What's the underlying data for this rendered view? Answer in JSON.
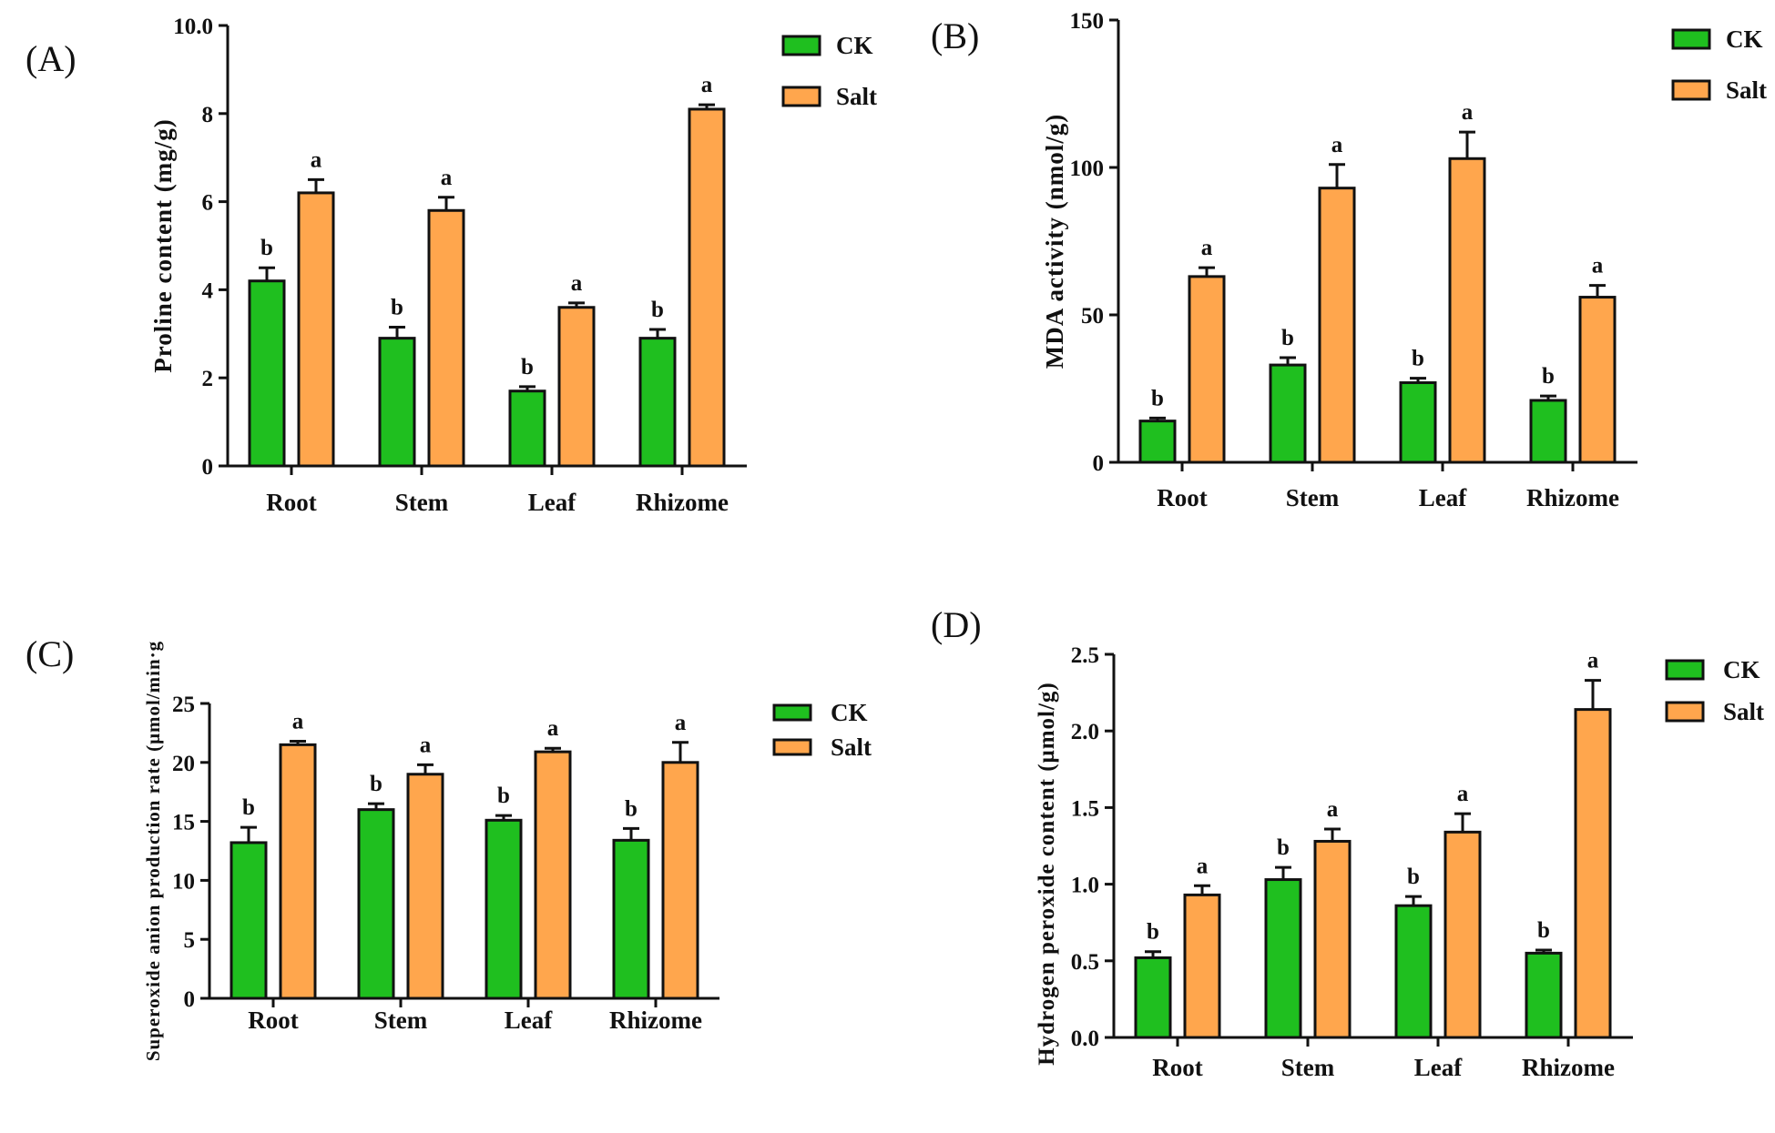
{
  "colors": {
    "ck": "#1fbf1f",
    "salt": "#ffa64d",
    "axis": "#111111"
  },
  "chart_data": [
    {
      "type": "bar",
      "panel": "(A)",
      "categories": [
        "Root",
        "Stem",
        "Leaf",
        "Rhizome"
      ],
      "ylabel": "Proline content (mg/g)",
      "ylim": [
        0,
        10
      ],
      "yticks": [
        0,
        2,
        4,
        6,
        8,
        10.0
      ],
      "ytick_labels": [
        "0",
        "2",
        "4",
        "6",
        "8",
        "10.0"
      ],
      "legend": {
        "position": "top-right",
        "entries": [
          "CK",
          "Salt"
        ]
      },
      "series": [
        {
          "name": "CK",
          "values": [
            4.2,
            2.9,
            1.7,
            2.9
          ],
          "errors": [
            0.3,
            0.25,
            0.1,
            0.2
          ],
          "sig": [
            "b",
            "b",
            "b",
            "b"
          ]
        },
        {
          "name": "Salt",
          "values": [
            6.2,
            5.8,
            3.6,
            8.1
          ],
          "errors": [
            0.3,
            0.3,
            0.1,
            0.1
          ],
          "sig": [
            "a",
            "a",
            "a",
            "a"
          ]
        }
      ]
    },
    {
      "type": "bar",
      "panel": "(B)",
      "categories": [
        "Root",
        "Stem",
        "Leaf",
        "Rhizome"
      ],
      "ylabel": "MDA activity (nmol/g)",
      "ylim": [
        0,
        150
      ],
      "yticks": [
        0,
        50,
        100,
        150
      ],
      "ytick_labels": [
        "0",
        "50",
        "100",
        "150"
      ],
      "legend": {
        "position": "top-right",
        "entries": [
          "CK",
          "Salt"
        ]
      },
      "series": [
        {
          "name": "CK",
          "values": [
            14,
            33,
            27,
            21
          ],
          "errors": [
            1,
            2.5,
            1.5,
            1.5
          ],
          "sig": [
            "b",
            "b",
            "b",
            "b"
          ]
        },
        {
          "name": "Salt",
          "values": [
            63,
            93,
            103,
            56
          ],
          "errors": [
            3,
            8,
            9,
            4
          ],
          "sig": [
            "a",
            "a",
            "a",
            "a"
          ]
        }
      ]
    },
    {
      "type": "bar",
      "panel": "(C)",
      "categories": [
        "Root",
        "Stem",
        "Leaf",
        "Rhizome"
      ],
      "ylabel": "Superoxide anion production rate (μmol/min·g",
      "ylim": [
        0,
        25
      ],
      "yticks": [
        0,
        5,
        10,
        15,
        20,
        25
      ],
      "ytick_labels": [
        "0",
        "5",
        "10",
        "15",
        "20",
        "25"
      ],
      "legend": {
        "position": "top-right",
        "entries": [
          "CK",
          "Salt"
        ]
      },
      "series": [
        {
          "name": "CK",
          "values": [
            13.2,
            16,
            15.1,
            13.4
          ],
          "errors": [
            1.3,
            0.5,
            0.4,
            1.0
          ],
          "sig": [
            "b",
            "b",
            "b",
            "b"
          ]
        },
        {
          "name": "Salt",
          "values": [
            21.5,
            19,
            20.9,
            20
          ],
          "errors": [
            0.3,
            0.8,
            0.3,
            1.7
          ],
          "sig": [
            "a",
            "a",
            "a",
            "a"
          ]
        }
      ]
    },
    {
      "type": "bar",
      "panel": "(D)",
      "categories": [
        "Root",
        "Stem",
        "Leaf",
        "Rhizome"
      ],
      "ylabel": "Hydrogen peroxide content (μmol/g)",
      "ylim": [
        0,
        2.5
      ],
      "yticks": [
        0,
        0.5,
        1.0,
        1.5,
        2.0,
        2.5
      ],
      "ytick_labels": [
        "0.0",
        "0.5",
        "1.0",
        "1.5",
        "2.0",
        "2.5"
      ],
      "legend": {
        "position": "top-right",
        "entries": [
          "CK",
          "Salt"
        ]
      },
      "series": [
        {
          "name": "CK",
          "values": [
            0.52,
            1.03,
            0.86,
            0.55
          ],
          "errors": [
            0.04,
            0.08,
            0.06,
            0.02
          ],
          "sig": [
            "b",
            "b",
            "b",
            "b"
          ]
        },
        {
          "name": "Salt",
          "values": [
            0.93,
            1.28,
            1.34,
            2.14
          ],
          "errors": [
            0.06,
            0.08,
            0.12,
            0.19
          ],
          "sig": [
            "a",
            "a",
            "a",
            "a"
          ]
        }
      ]
    }
  ]
}
